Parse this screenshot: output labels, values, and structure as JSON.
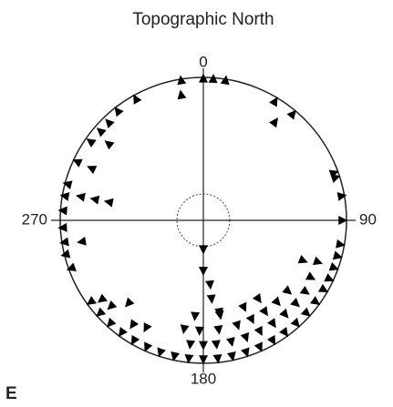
{
  "chart_data": {
    "type": "polar-scatter",
    "title": "Topographic North",
    "panel_label": "E",
    "thetaticks": [
      0,
      90,
      180,
      270
    ],
    "rlim": [
      0,
      1
    ],
    "color": "#000000",
    "azimuth": [
      351,
      350,
      0,
      4,
      9,
      331,
      322,
      316,
      311,
      305,
      309,
      295,
      295,
      285,
      280,
      274,
      267,
      261,
      256,
      250,
      281,
      281,
      281,
      260,
      31,
      40,
      36,
      70,
      72,
      80,
      90,
      100,
      105,
      110,
      115,
      110,
      118,
      112,
      120,
      126,
      132,
      138,
      144,
      150,
      156,
      162,
      168,
      174,
      180,
      186,
      192,
      198,
      204,
      210,
      216,
      222,
      228,
      234,
      125,
      132,
      139,
      146,
      153,
      160,
      167,
      174,
      180,
      186,
      130,
      138,
      146,
      154,
      162,
      172,
      182,
      190,
      145,
      155,
      170,
      185,
      232,
      227,
      222,
      214,
      208,
      180,
      180,
      174,
      174,
      170
    ],
    "radius": [
      0.99,
      0.89,
      0.99,
      0.99,
      0.99,
      0.97,
      0.97,
      0.95,
      0.95,
      0.96,
      0.85,
      0.97,
      0.86,
      0.98,
      0.98,
      0.98,
      0.98,
      0.98,
      0.99,
      0.98,
      0.87,
      0.77,
      0.67,
      0.86,
      0.97,
      0.97,
      0.85,
      0.97,
      0.97,
      0.98,
      0.97,
      0.97,
      0.97,
      0.97,
      0.97,
      0.85,
      0.85,
      0.75,
      0.97,
      0.97,
      0.97,
      0.97,
      0.97,
      0.97,
      0.97,
      0.97,
      0.97,
      0.97,
      0.97,
      0.97,
      0.97,
      0.97,
      0.97,
      0.97,
      0.97,
      0.97,
      0.97,
      0.97,
      0.87,
      0.87,
      0.87,
      0.87,
      0.87,
      0.87,
      0.87,
      0.87,
      0.87,
      0.87,
      0.77,
      0.77,
      0.77,
      0.77,
      0.77,
      0.77,
      0.77,
      0.77,
      0.67,
      0.67,
      0.67,
      0.67,
      0.9,
      0.88,
      0.78,
      0.88,
      0.85,
      0.2,
      0.35,
      0.45,
      0.55,
      0.65
    ]
  }
}
